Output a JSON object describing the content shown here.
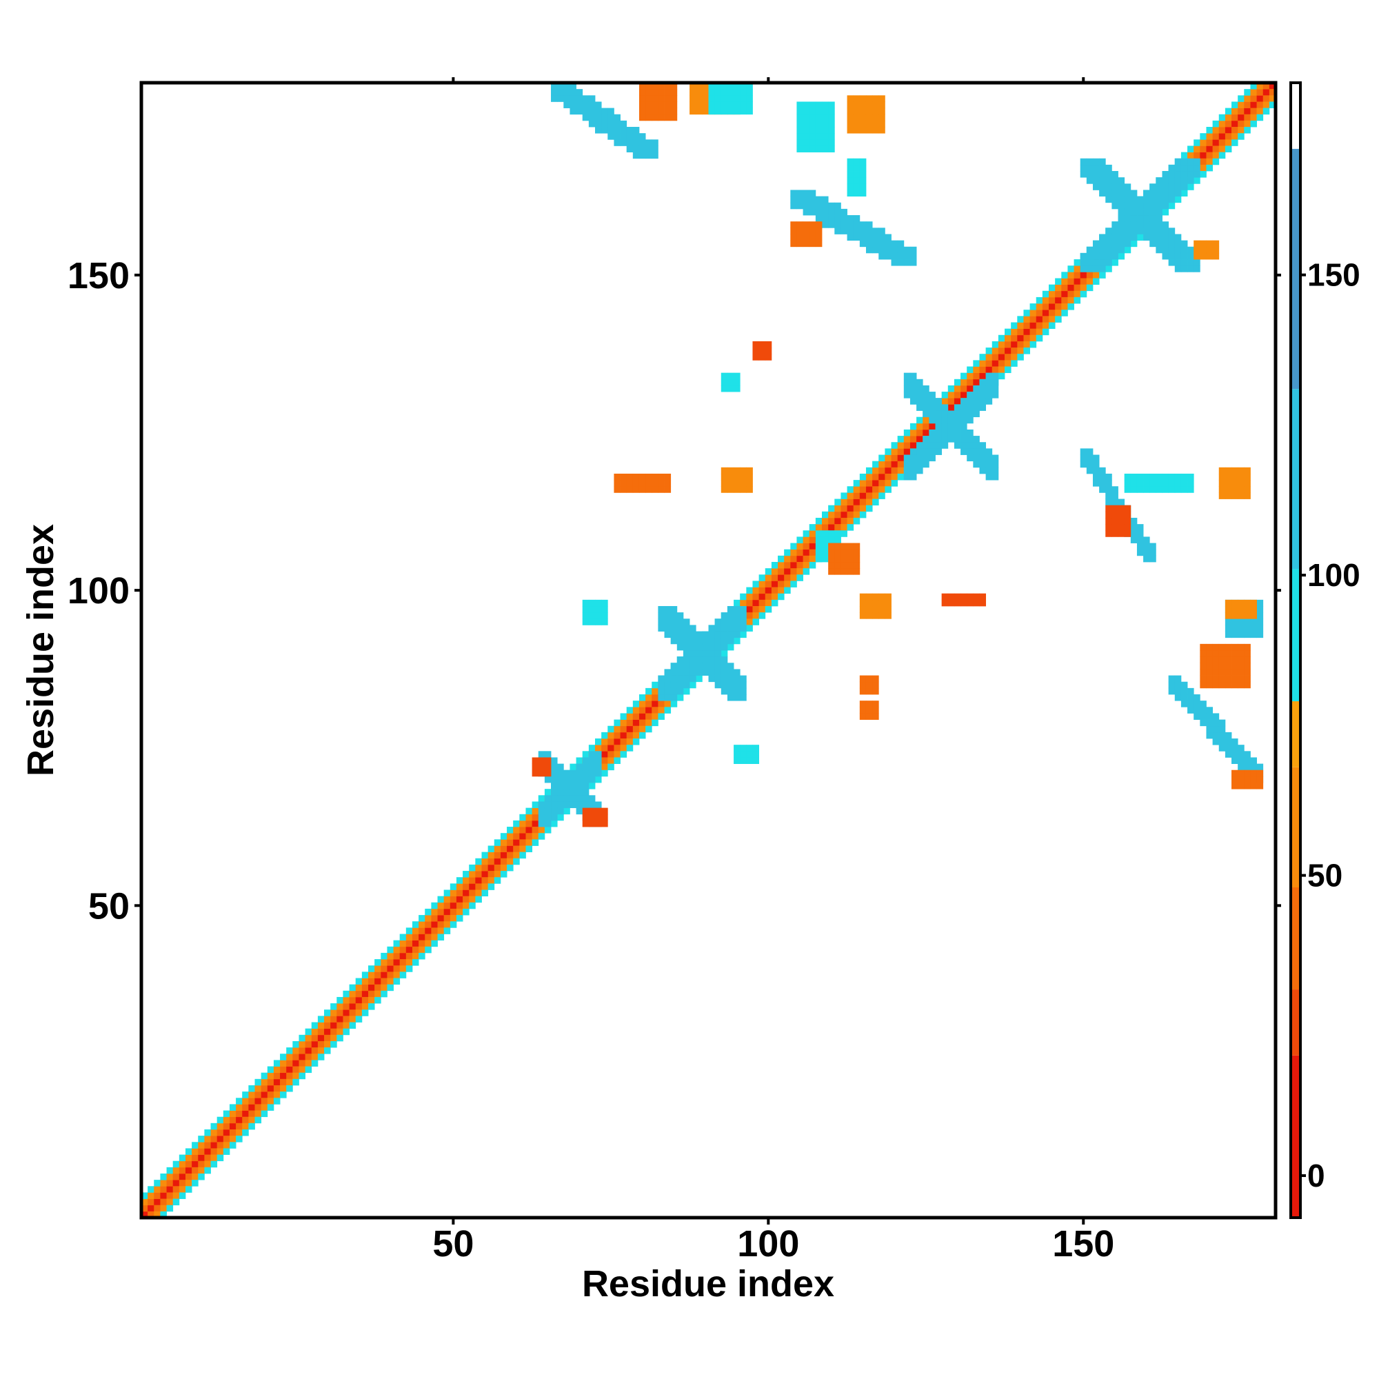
{
  "chart_data": {
    "type": "heatmap",
    "title": "",
    "xlabel": "Residue index",
    "ylabel": "Residue index",
    "xlim": [
      1,
      180
    ],
    "ylim": [
      1,
      180
    ],
    "x_ticks": [
      "50",
      "100",
      "150"
    ],
    "y_ticks": [
      "50",
      "100",
      "150"
    ],
    "colorbar": {
      "range": [
        -7,
        182
      ],
      "ticks": [
        "0",
        "50",
        "100",
        "150"
      ],
      "bands": [
        {
          "from": -7,
          "to": 20,
          "color": "#e8190a"
        },
        {
          "from": 20,
          "to": 31,
          "color": "#f04a0a"
        },
        {
          "from": 31,
          "to": 48,
          "color": "#f56d0b"
        },
        {
          "from": 48,
          "to": 68,
          "color": "#f88c0c"
        },
        {
          "from": 68,
          "to": 79,
          "color": "#f9a10d"
        },
        {
          "from": 79,
          "to": 101,
          "color": "#1fe1e8"
        },
        {
          "from": 101,
          "to": 131,
          "color": "#30c3e0"
        },
        {
          "from": 131,
          "to": 171,
          "color": "#4797cc"
        },
        {
          "from": 171,
          "to": 182,
          "color": "#ffffff"
        }
      ]
    },
    "diagonal": {
      "residues": [
        1,
        180
      ],
      "pattern_by_offset": {
        "0": 0,
        "1": 40,
        "2": 65,
        "3": 90
      }
    },
    "contact_regions": [
      {
        "x": [
          66,
          82
        ],
        "y": [
          169,
          180
        ],
        "value": 120,
        "shape": "antidiag"
      },
      {
        "x": [
          80,
          85
        ],
        "y": [
          175,
          180
        ],
        "value": 45
      },
      {
        "x": [
          88,
          95
        ],
        "y": [
          176,
          180
        ],
        "value": 50
      },
      {
        "x": [
          91,
          97
        ],
        "y": [
          176,
          180
        ],
        "value": 100
      },
      {
        "x": [
          113,
          118
        ],
        "y": [
          173,
          178
        ],
        "value": 50
      },
      {
        "x": [
          105,
          110
        ],
        "y": [
          170,
          177
        ],
        "value": 100
      },
      {
        "x": [
          113,
          115
        ],
        "y": [
          163,
          168
        ],
        "value": 100
      },
      {
        "x": [
          104,
          123
        ],
        "y": [
          152,
          163
        ],
        "value": 130,
        "shape": "antidiag"
      },
      {
        "x": [
          104,
          108
        ],
        "y": [
          155,
          158
        ],
        "value": 40
      },
      {
        "x": [
          150,
          168
        ],
        "y": [
          151,
          168
        ],
        "value": 115,
        "shape": "cross"
      },
      {
        "x": [
          122,
          136
        ],
        "y": [
          118,
          134
        ],
        "value": 110,
        "shape": "cross"
      },
      {
        "x": [
          93,
          97
        ],
        "y": [
          116,
          119
        ],
        "value": 50
      },
      {
        "x": [
          81,
          84
        ],
        "y": [
          116,
          118
        ],
        "value": 45
      },
      {
        "x": [
          76,
          80
        ],
        "y": [
          116,
          118
        ],
        "value": 45
      },
      {
        "x": [
          150,
          161
        ],
        "y": [
          105,
          122
        ],
        "value": 125,
        "shape": "antidiag"
      },
      {
        "x": [
          172,
          176
        ],
        "y": [
          115,
          119
        ],
        "value": 50
      },
      {
        "x": [
          157,
          167
        ],
        "y": [
          116,
          118
        ],
        "value": 85
      },
      {
        "x": [
          154,
          157
        ],
        "y": [
          109,
          113
        ],
        "value": 30
      },
      {
        "x": [
          108,
          111
        ],
        "y": [
          105,
          109
        ],
        "value": 100
      },
      {
        "x": [
          110,
          114
        ],
        "y": [
          103,
          107
        ],
        "value": 40
      },
      {
        "x": [
          115,
          119
        ],
        "y": [
          96,
          99
        ],
        "value": 50
      },
      {
        "x": [
          128,
          134
        ],
        "y": [
          98,
          99
        ],
        "value": 25
      },
      {
        "x": [
          173,
          178
        ],
        "y": [
          93,
          98
        ],
        "value": 105
      },
      {
        "x": [
          173,
          177
        ],
        "y": [
          96,
          98
        ],
        "value": 50
      },
      {
        "x": [
          169,
          176
        ],
        "y": [
          85,
          91
        ],
        "value": 40
      },
      {
        "x": [
          164,
          178
        ],
        "y": [
          70,
          86
        ],
        "value": 125,
        "shape": "antidiag"
      },
      {
        "x": [
          174,
          178
        ],
        "y": [
          69,
          71
        ],
        "value": 45
      },
      {
        "x": [
          71,
          74
        ],
        "y": [
          95,
          98
        ],
        "value": 100
      },
      {
        "x": [
          83,
          96
        ],
        "y": [
          83,
          97
        ],
        "value": 110,
        "shape": "cross"
      },
      {
        "x": [
          64,
          73
        ],
        "y": [
          63,
          74
        ],
        "value": 115,
        "shape": "cross"
      },
      {
        "x": [
          63,
          65
        ],
        "y": [
          71,
          73
        ],
        "value": 30
      },
      {
        "x": [
          71,
          74
        ],
        "y": [
          63,
          65
        ],
        "value": 25
      },
      {
        "x": [
          95,
          98
        ],
        "y": [
          73,
          75
        ],
        "value": 95
      },
      {
        "x": [
          115,
          117
        ],
        "y": [
          80,
          82
        ],
        "value": 45
      },
      {
        "x": [
          115,
          117
        ],
        "y": [
          84,
          86
        ],
        "value": 45
      },
      {
        "x": [
          98,
          100
        ],
        "y": [
          137,
          139
        ],
        "value": 20
      },
      {
        "x": [
          93,
          95
        ],
        "y": [
          132,
          134
        ],
        "value": 95
      },
      {
        "x": [
          168,
          171
        ],
        "y": [
          153,
          155
        ],
        "value": 60
      }
    ]
  }
}
